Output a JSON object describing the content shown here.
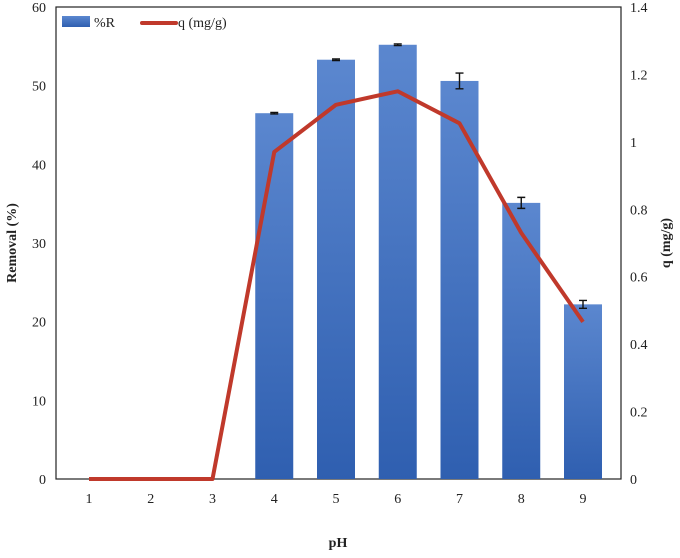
{
  "chart_data": {
    "type": "bar+line",
    "title": "",
    "xlabel": "pH",
    "ylabel": "Removal (%)",
    "y2label": "q (mg/g)",
    "categories": [
      "1",
      "2",
      "3",
      "4",
      "5",
      "6",
      "7",
      "8",
      "9"
    ],
    "ylim": [
      0,
      60
    ],
    "yticks": [
      0,
      10,
      20,
      30,
      40,
      50,
      60
    ],
    "y2lim": [
      0,
      1.4
    ],
    "y2ticks": [
      "0",
      "0.2",
      "0.4",
      "0.6",
      "0.8",
      "1",
      "1.2",
      "1.4"
    ],
    "grid": false,
    "legend_placement": "top-left",
    "series": [
      {
        "name": "%R",
        "kind": "bar",
        "axis": "left",
        "color": "#4472c4",
        "values": [
          0,
          0,
          0,
          46.5,
          53.3,
          55.2,
          50.6,
          35.1,
          22.2
        ],
        "errors": [
          0,
          0,
          0,
          0.1,
          0.1,
          0.1,
          1.0,
          0.7,
          0.5
        ]
      },
      {
        "name": "q (mg/g)",
        "kind": "line",
        "axis": "right",
        "color": "#c0392b",
        "values": [
          0,
          0,
          0,
          0.97,
          1.11,
          1.15,
          1.055,
          0.73,
          0.466
        ]
      }
    ]
  }
}
